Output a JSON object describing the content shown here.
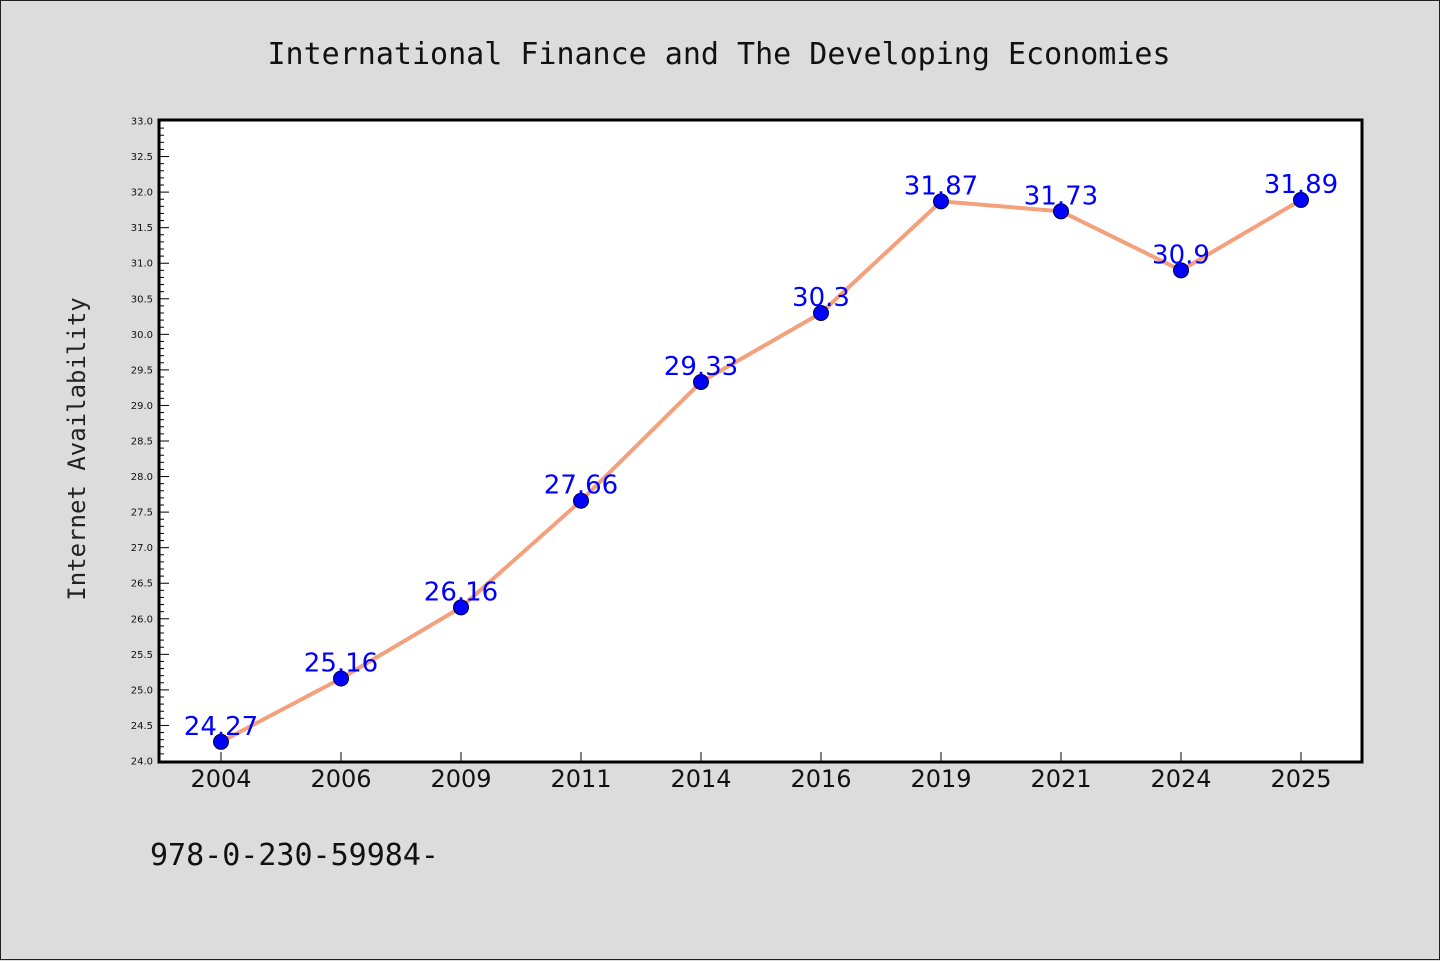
{
  "chart_data": {
    "type": "line",
    "title": "International Finance and The Developing Economies",
    "xlabel": "",
    "ylabel": "Internet Availability",
    "categories": [
      "2004",
      "2006",
      "2009",
      "2011",
      "2014",
      "2016",
      "2019",
      "2021",
      "2024",
      "2025"
    ],
    "series": [
      {
        "values": [
          24.27,
          25.16,
          26.16,
          27.66,
          29.33,
          30.3,
          31.87,
          31.73,
          30.9,
          31.89
        ]
      }
    ],
    "ylim": [
      24.0,
      33.0
    ],
    "yticks": [
      "24.0",
      "24.5",
      "25.0",
      "25.5",
      "26.0",
      "26.5",
      "27.0",
      "27.5",
      "28.0",
      "28.5",
      "29.0",
      "29.5",
      "30.0",
      "30.5",
      "31.0",
      "31.5",
      "32.0",
      "32.5",
      "33.0"
    ],
    "data_labels": [
      "24.27",
      "25.16",
      "26.16",
      "27.66",
      "29.33",
      "30.3",
      "31.87",
      "31.73",
      "30.9",
      "31.89"
    ],
    "grid": false,
    "legend": "none",
    "line_color": "#f4a07c",
    "marker_color": "#0000ff",
    "label_color": "#0000ff"
  },
  "footnote": "978-0-230-59984-"
}
